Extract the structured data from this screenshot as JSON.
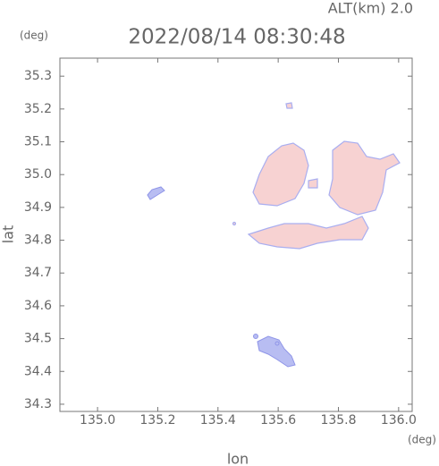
{
  "chart_data": {
    "type": "map",
    "title": "2022/08/14 08:30:48",
    "subtitle": "ALT(km) 2.0",
    "x_label": "lon",
    "y_label": "lat",
    "x_unit": "(deg)",
    "y_unit": "(deg)",
    "xlim": [
      134.875,
      136.045
    ],
    "ylim": [
      34.278,
      35.355
    ],
    "xticks": [
      {
        "value": 135.0,
        "label": "135.0"
      },
      {
        "value": 135.2,
        "label": "135.2"
      },
      {
        "value": 135.4,
        "label": "135.4"
      },
      {
        "value": 135.6,
        "label": "135.6"
      },
      {
        "value": 135.8,
        "label": "135.8"
      },
      {
        "value": 136.0,
        "label": "136.0"
      }
    ],
    "yticks": [
      {
        "value": 34.3,
        "label": "34.3"
      },
      {
        "value": 34.4,
        "label": "34.4"
      },
      {
        "value": 34.5,
        "label": "34.5"
      },
      {
        "value": 34.6,
        "label": "34.6"
      },
      {
        "value": 34.7,
        "label": "34.7"
      },
      {
        "value": 34.8,
        "label": "34.8"
      },
      {
        "value": 34.9,
        "label": "34.9"
      },
      {
        "value": 35.0,
        "label": "35.0"
      },
      {
        "value": 35.1,
        "label": "35.1"
      },
      {
        "value": 35.2,
        "label": "35.2"
      },
      {
        "value": 35.3,
        "label": "35.3"
      }
    ]
  }
}
